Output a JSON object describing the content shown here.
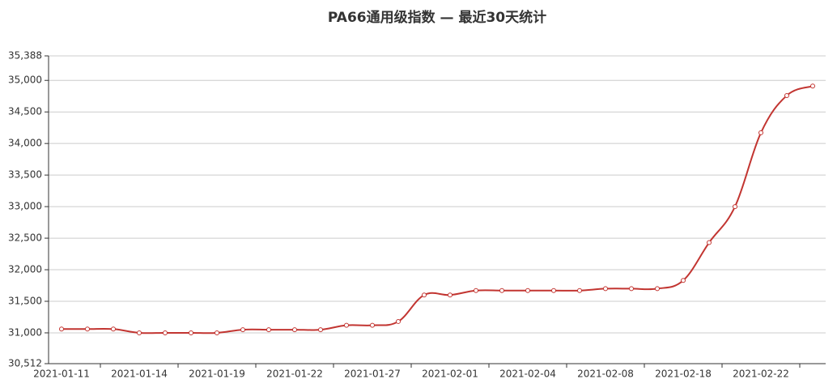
{
  "chart_data": {
    "type": "line",
    "title": "PA66通用级指数 — 最近30天统计",
    "categories": [
      "2021-01-11",
      null,
      null,
      "2021-01-14",
      null,
      null,
      "2021-01-19",
      null,
      null,
      "2021-01-22",
      null,
      null,
      "2021-01-27",
      null,
      null,
      "2021-02-01",
      null,
      null,
      "2021-02-04",
      null,
      null,
      "2021-02-08",
      null,
      null,
      "2021-02-18",
      null,
      null,
      "2021-02-22",
      null,
      null
    ],
    "series": [
      {
        "name": "PA66通用级指数",
        "color": "#c23531",
        "values": [
          31060,
          31060,
          31060,
          31000,
          31000,
          31000,
          31000,
          31050,
          31050,
          31050,
          31050,
          31120,
          31120,
          31180,
          31600,
          31600,
          31670,
          31670,
          31670,
          31670,
          31670,
          31700,
          31700,
          31700,
          31830,
          32430,
          33000,
          34170,
          34760,
          34910
        ]
      }
    ],
    "ylim": [
      30512,
      35388
    ],
    "yticks": [
      {
        "value": 30512,
        "label": "30,512"
      },
      {
        "value": 31000,
        "label": "31,000"
      },
      {
        "value": 31500,
        "label": "31,500"
      },
      {
        "value": 32000,
        "label": "32,000"
      },
      {
        "value": 32500,
        "label": "32,500"
      },
      {
        "value": 33000,
        "label": "33,000"
      },
      {
        "value": 33500,
        "label": "33,500"
      },
      {
        "value": 34000,
        "label": "34,000"
      },
      {
        "value": 34500,
        "label": "34,500"
      },
      {
        "value": 35000,
        "label": "35,000"
      },
      {
        "value": 35388,
        "label": "35,388"
      }
    ],
    "grid": true
  }
}
